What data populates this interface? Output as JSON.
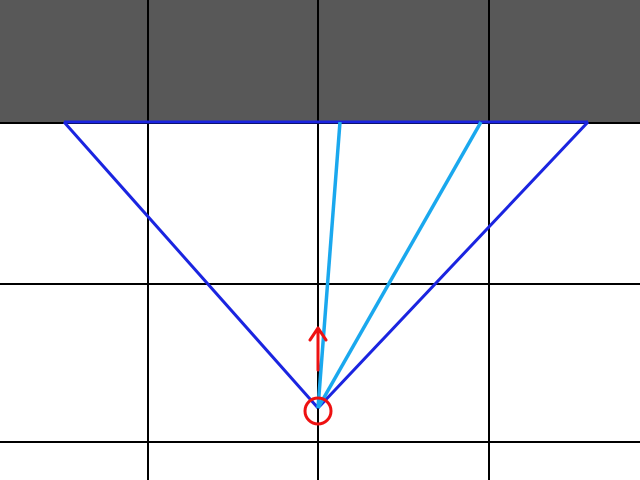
{
  "scene": {
    "colors": {
      "background": "#ffffff",
      "wall_fill": "#585858",
      "grid_line": "#000000",
      "fov_cone": "#1a24e0",
      "rays": "#1aa8ee",
      "player": "#ee1111"
    },
    "icons": {
      "player": "player-marker-icon",
      "heading": "heading-arrow-icon"
    },
    "grid": {
      "columns": 4,
      "rows": 3,
      "wall_row_index": 0
    },
    "player": {
      "heading": "up",
      "ray_count": 2
    }
  }
}
